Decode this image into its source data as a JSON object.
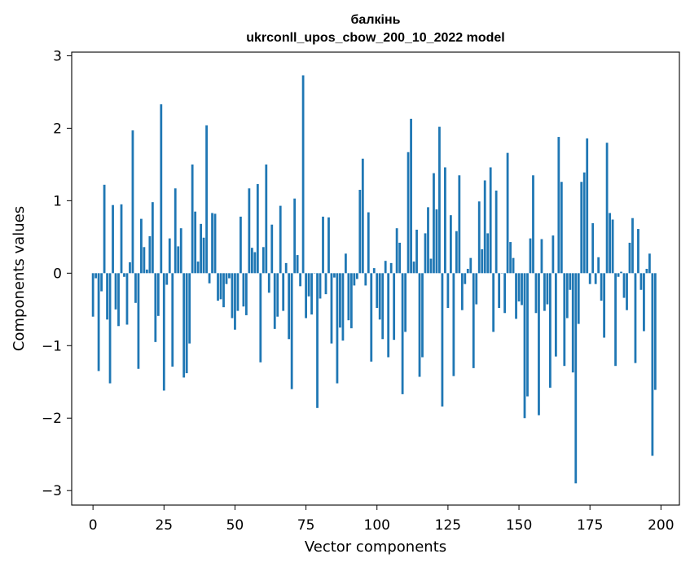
{
  "chart_data": {
    "type": "bar",
    "title": "балкінь",
    "subtitle": "ukrconll_upos_cbow_200_10_2022 model",
    "xlabel": "Vector components",
    "ylabel": "Components values",
    "xlim": [
      -7.5,
      206.5
    ],
    "ylim": [
      -3.2,
      3.05
    ],
    "xticks": [
      0,
      25,
      50,
      75,
      100,
      125,
      150,
      175,
      200
    ],
    "yticks": [
      -3,
      -2,
      -1,
      0,
      1,
      2,
      3
    ],
    "ytick_labels": [
      "−3",
      "−2",
      "−1",
      "0",
      "1",
      "2",
      "3"
    ],
    "bar_color": "#1f77b4",
    "grid": false,
    "values": [
      -0.6,
      -0.07,
      -1.35,
      -0.25,
      1.22,
      -0.64,
      -1.52,
      0.94,
      -0.5,
      -0.73,
      0.95,
      -0.05,
      -0.71,
      0.15,
      1.97,
      -0.41,
      -1.32,
      0.75,
      0.36,
      0.05,
      0.51,
      0.98,
      -0.95,
      -0.59,
      2.33,
      -1.62,
      -0.16,
      0.48,
      -1.29,
      1.17,
      0.37,
      0.62,
      -1.44,
      -1.38,
      -0.97,
      1.5,
      0.85,
      0.16,
      0.68,
      0.49,
      2.04,
      -0.14,
      0.83,
      0.82,
      -0.38,
      -0.36,
      -0.47,
      -0.15,
      -0.07,
      -0.62,
      -0.78,
      -0.52,
      0.78,
      -0.46,
      -0.58,
      1.17,
      0.35,
      0.29,
      1.23,
      -1.23,
      0.36,
      1.5,
      -0.27,
      0.67,
      -0.77,
      -0.6,
      0.93,
      -0.52,
      0.14,
      -0.91,
      -1.6,
      1.03,
      0.25,
      -0.18,
      2.73,
      -0.62,
      -0.32,
      -0.57,
      0.0,
      -1.86,
      -0.35,
      0.78,
      -0.29,
      0.77,
      -0.97,
      -0.06,
      -1.52,
      -0.75,
      -0.93,
      0.27,
      -0.65,
      -0.76,
      -0.17,
      -0.08,
      1.15,
      1.58,
      -0.17,
      0.84,
      -1.22,
      0.07,
      -0.48,
      -0.64,
      -0.91,
      0.17,
      -1.16,
      0.14,
      -0.92,
      0.62,
      0.42,
      -1.67,
      -0.81,
      1.67,
      2.13,
      0.16,
      0.6,
      -1.43,
      -1.16,
      0.55,
      0.91,
      0.2,
      1.38,
      0.88,
      2.02,
      -1.84,
      1.46,
      -0.48,
      0.8,
      -1.42,
      0.58,
      1.35,
      -0.51,
      -0.15,
      0.06,
      0.21,
      -1.31,
      -0.43,
      0.99,
      0.33,
      1.28,
      0.55,
      1.46,
      -0.81,
      1.14,
      -0.48,
      0.0,
      -0.55,
      1.66,
      0.43,
      0.21,
      -0.63,
      -0.39,
      -0.44,
      -2.0,
      -1.7,
      0.48,
      1.35,
      -0.55,
      -1.96,
      0.47,
      -0.52,
      -0.43,
      -1.58,
      0.52,
      -1.15,
      1.88,
      1.26,
      -1.28,
      -0.62,
      -0.23,
      -1.37,
      -2.9,
      -0.7,
      1.26,
      1.39,
      1.86,
      -0.15,
      0.69,
      -0.15,
      0.22,
      -0.38,
      -0.89,
      1.8,
      0.83,
      0.74,
      -1.28,
      -0.05,
      0.02,
      -0.34,
      -0.51,
      0.42,
      0.76,
      -1.24,
      0.61,
      -0.23,
      -0.8,
      0.06,
      0.27,
      -2.52,
      -1.61
    ]
  }
}
